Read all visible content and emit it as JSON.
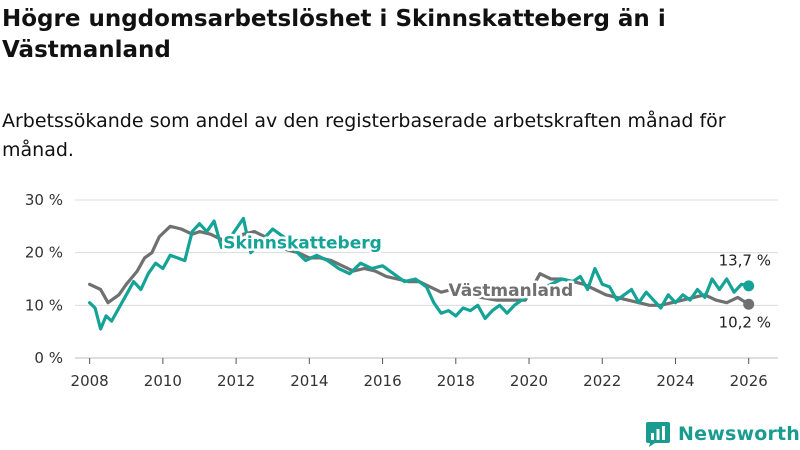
{
  "title": "Högre ungdomsarbetslöshet i Skinnskatteberg än i Västmanland",
  "subtitle": "Arbetssökande som andel av den registerbaserade arbetskraften månad för månad.",
  "brand": "Newsworthy",
  "colors": {
    "skinnskatteberg": "#14a396",
    "vastmanland": "#707070",
    "grid": "#dcdcdc",
    "brand": "#1a9b90"
  },
  "chart_data": {
    "type": "line",
    "xlabel": "",
    "ylabel": "",
    "xlim": [
      2007.6,
      2026.8
    ],
    "ylim": [
      0,
      30
    ],
    "x_ticks": [
      2008,
      2010,
      2012,
      2014,
      2016,
      2018,
      2020,
      2022,
      2024,
      2026
    ],
    "x_tick_labels": [
      "2008",
      "2010",
      "2012",
      "2014",
      "2016",
      "2018",
      "2020",
      "2022",
      "2024",
      "2026"
    ],
    "y_ticks": [
      0,
      10,
      20,
      30
    ],
    "y_tick_labels": [
      "0 %",
      "10 %",
      "20 %",
      "30 %"
    ],
    "series": [
      {
        "name": "Västmanland",
        "label": "Västmanland",
        "color": "#707070",
        "x": [
          2008.0,
          2008.3,
          2008.5,
          2008.8,
          2009.0,
          2009.3,
          2009.5,
          2009.7,
          2009.9,
          2010.2,
          2010.5,
          2010.8,
          2011.0,
          2011.3,
          2011.6,
          2011.9,
          2012.2,
          2012.5,
          2012.8,
          2013.1,
          2013.4,
          2013.7,
          2014.0,
          2014.3,
          2014.6,
          2014.9,
          2015.2,
          2015.5,
          2015.8,
          2016.1,
          2016.4,
          2016.7,
          2017.0,
          2017.3,
          2017.6,
          2017.9,
          2018.3,
          2018.7,
          2019.1,
          2019.5,
          2019.9,
          2020.3,
          2020.6,
          2020.9,
          2021.2,
          2021.5,
          2021.8,
          2022.1,
          2022.4,
          2022.7,
          2023.0,
          2023.3,
          2023.6,
          2023.9,
          2024.2,
          2024.5,
          2024.8,
          2025.1,
          2025.4,
          2025.7,
          2026.0
        ],
        "values": [
          14.0,
          13.0,
          10.5,
          12.0,
          14.0,
          16.5,
          19.0,
          20.0,
          23.0,
          25.0,
          24.5,
          23.5,
          24.0,
          23.5,
          22.5,
          21.5,
          23.5,
          24.0,
          23.0,
          21.5,
          20.5,
          20.0,
          19.0,
          19.0,
          18.5,
          17.5,
          16.5,
          17.0,
          16.5,
          15.5,
          15.0,
          14.5,
          14.5,
          13.5,
          12.5,
          13.0,
          12.0,
          11.5,
          11.0,
          11.0,
          11.0,
          16.0,
          15.0,
          15.0,
          14.5,
          14.0,
          13.0,
          12.0,
          11.5,
          11.0,
          10.5,
          10.0,
          10.0,
          10.5,
          11.0,
          11.5,
          12.0,
          11.0,
          10.5,
          11.5,
          10.2
        ]
      },
      {
        "name": "Skinnskatteberg",
        "label": "Skinnskatteberg",
        "color": "#14a396",
        "x": [
          2008.0,
          2008.15,
          2008.3,
          2008.45,
          2008.6,
          2008.8,
          2009.0,
          2009.2,
          2009.4,
          2009.6,
          2009.8,
          2010.0,
          2010.2,
          2010.4,
          2010.6,
          2010.8,
          2011.0,
          2011.2,
          2011.4,
          2011.6,
          2011.8,
          2012.0,
          2012.2,
          2012.4,
          2012.6,
          2012.8,
          2013.0,
          2013.3,
          2013.6,
          2013.9,
          2014.2,
          2014.5,
          2014.8,
          2015.1,
          2015.4,
          2015.7,
          2016.0,
          2016.3,
          2016.6,
          2016.9,
          2017.2,
          2017.4,
          2017.6,
          2017.8,
          2018.0,
          2018.2,
          2018.4,
          2018.6,
          2018.8,
          2019.0,
          2019.2,
          2019.4,
          2019.6,
          2019.8,
          2020.6,
          2020.9,
          2021.2,
          2021.4,
          2021.6,
          2021.8,
          2022.0,
          2022.2,
          2022.4,
          2022.6,
          2022.8,
          2023.0,
          2023.2,
          2023.4,
          2023.6,
          2023.8,
          2024.0,
          2024.2,
          2024.4,
          2024.6,
          2024.8,
          2025.0,
          2025.2,
          2025.4,
          2025.6,
          2025.8,
          2026.0
        ],
        "values": [
          10.5,
          9.5,
          5.5,
          8.0,
          7.0,
          9.5,
          12.0,
          14.5,
          13.0,
          16.0,
          18.0,
          17.0,
          19.5,
          19.0,
          18.5,
          24.0,
          25.5,
          24.0,
          26.0,
          21.0,
          22.5,
          24.5,
          26.5,
          20.0,
          21.5,
          23.0,
          24.5,
          23.0,
          20.5,
          18.5,
          19.5,
          18.5,
          17.0,
          16.0,
          18.0,
          17.0,
          17.5,
          16.0,
          14.5,
          15.0,
          13.5,
          10.5,
          8.5,
          9.0,
          8.0,
          9.5,
          9.0,
          10.0,
          7.5,
          9.0,
          10.0,
          8.5,
          10.0,
          11.0,
          14.0,
          15.0,
          14.5,
          15.5,
          13.0,
          17.0,
          14.0,
          13.5,
          11.0,
          12.0,
          13.0,
          10.5,
          12.5,
          11.0,
          9.5,
          12.0,
          10.5,
          12.0,
          11.0,
          13.0,
          11.5,
          15.0,
          13.0,
          15.0,
          12.5,
          14.0,
          13.7
        ]
      }
    ],
    "end_labels": {
      "skinnskatteberg": "13,7 %",
      "vastmanland": "10,2 %"
    }
  }
}
